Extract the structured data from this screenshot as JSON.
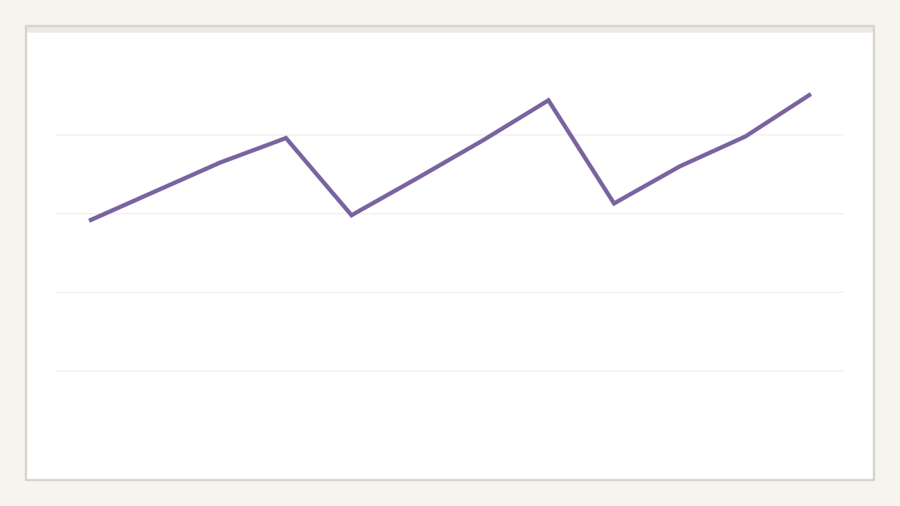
{
  "chart_data": {
    "type": "line",
    "categories": [
      null,
      null,
      null,
      null,
      null,
      null,
      null,
      null,
      null,
      null,
      null,
      null
    ],
    "series": [
      {
        "color": "#7a64a0",
        "values": [
          2.91,
          3.28,
          3.65,
          3.96,
          2.98,
          3.45,
          3.93,
          4.44,
          3.13,
          3.6,
          3.98,
          4.52
        ]
      }
    ],
    "ylim": [
      0,
      5
    ],
    "yticks": [
      1,
      2,
      3,
      4
    ],
    "grid": true
  }
}
